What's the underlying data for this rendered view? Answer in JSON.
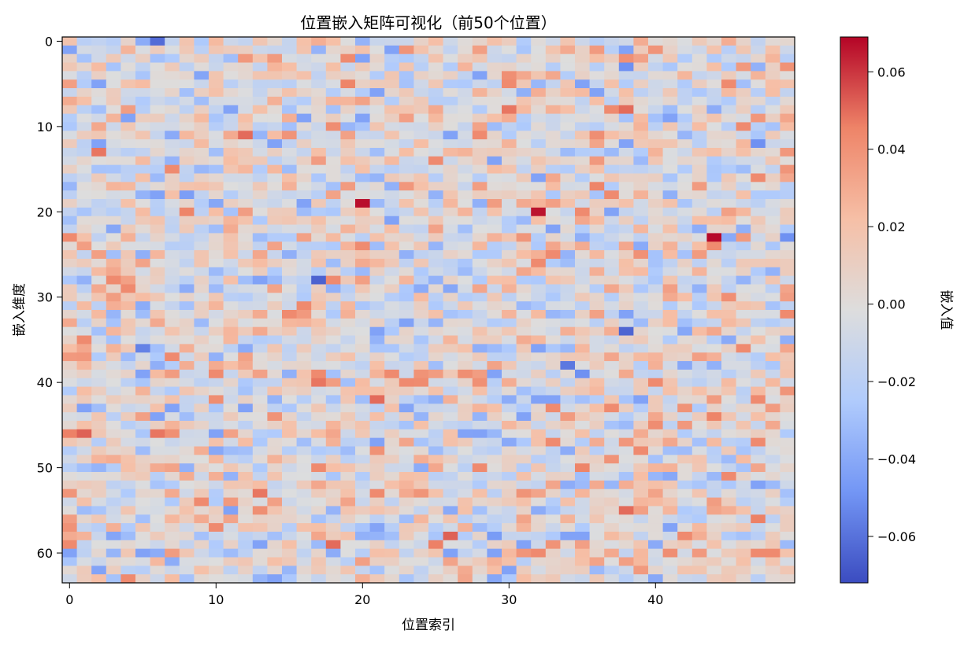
{
  "chart_data": {
    "type": "heatmap",
    "title": "位置嵌入矩阵可视化（前50个位置）",
    "xlabel": "位置索引",
    "ylabel": "嵌入维度",
    "colorbar_label": "嵌入值",
    "colormap": "coolwarm",
    "colormap_stops": [
      "#3b4cc0",
      "#7396f5",
      "#b0cbfc",
      "#dddddd",
      "#f6bfa6",
      "#ee8468",
      "#b40426"
    ],
    "n_columns": 50,
    "n_rows": 64,
    "x_ticks": [
      0,
      10,
      20,
      30,
      40
    ],
    "y_ticks": [
      0,
      10,
      20,
      30,
      40,
      50,
      60
    ],
    "value_range": [
      -0.072,
      0.069
    ],
    "colorbar_ticks": [
      {
        "value": 0.06,
        "label": "0.06"
      },
      {
        "value": 0.04,
        "label": "0.04"
      },
      {
        "value": 0.02,
        "label": "0.02"
      },
      {
        "value": 0.0,
        "label": "0.00"
      },
      {
        "value": -0.02,
        "label": "−0.02"
      },
      {
        "value": -0.04,
        "label": "−0.04"
      },
      {
        "value": -0.06,
        "label": "−0.06"
      }
    ],
    "value_distribution": {
      "mean": 0.0,
      "std": 0.02
    },
    "notable_cells": [
      {
        "x": 6,
        "y": 0,
        "value": -0.062
      },
      {
        "x": 20,
        "y": 19,
        "value": 0.067
      },
      {
        "x": 32,
        "y": 20,
        "value": 0.066
      },
      {
        "x": 44,
        "y": 23,
        "value": 0.068
      },
      {
        "x": 12,
        "y": 11,
        "value": 0.05
      },
      {
        "x": 2,
        "y": 13,
        "value": 0.048
      },
      {
        "x": 19,
        "y": 5,
        "value": 0.045
      },
      {
        "x": 30,
        "y": 8,
        "value": 0.048
      },
      {
        "x": 38,
        "y": 8,
        "value": 0.05
      },
      {
        "x": 17,
        "y": 28,
        "value": -0.065
      },
      {
        "x": 38,
        "y": 34,
        "value": -0.064
      },
      {
        "x": 5,
        "y": 36,
        "value": -0.055
      },
      {
        "x": 34,
        "y": 38,
        "value": -0.058
      },
      {
        "x": 35,
        "y": 39,
        "value": -0.05
      },
      {
        "x": 38,
        "y": 3,
        "value": -0.05
      },
      {
        "x": 0,
        "y": 46,
        "value": 0.046
      },
      {
        "x": 1,
        "y": 46,
        "value": 0.052
      },
      {
        "x": 6,
        "y": 46,
        "value": 0.048
      },
      {
        "x": 21,
        "y": 42,
        "value": 0.05
      },
      {
        "x": 17,
        "y": 40,
        "value": 0.048
      },
      {
        "x": 26,
        "y": 58,
        "value": 0.052
      },
      {
        "x": 18,
        "y": 59,
        "value": 0.05
      },
      {
        "x": 13,
        "y": 53,
        "value": 0.048
      },
      {
        "x": 38,
        "y": 55,
        "value": 0.05
      },
      {
        "x": 49,
        "y": 23,
        "value": -0.05
      },
      {
        "x": 47,
        "y": 12,
        "value": -0.05
      },
      {
        "x": 47,
        "y": 56,
        "value": 0.046
      },
      {
        "x": 29,
        "y": 58,
        "value": -0.046
      },
      {
        "x": 8,
        "y": 18,
        "value": -0.045
      },
      {
        "x": 8,
        "y": 20,
        "value": 0.045
      },
      {
        "x": 36,
        "y": 17,
        "value": 0.045
      },
      {
        "x": 25,
        "y": 59,
        "value": 0.046
      },
      {
        "x": 35,
        "y": 50,
        "value": 0.045
      },
      {
        "x": 44,
        "y": 44,
        "value": 0.045
      }
    ]
  }
}
